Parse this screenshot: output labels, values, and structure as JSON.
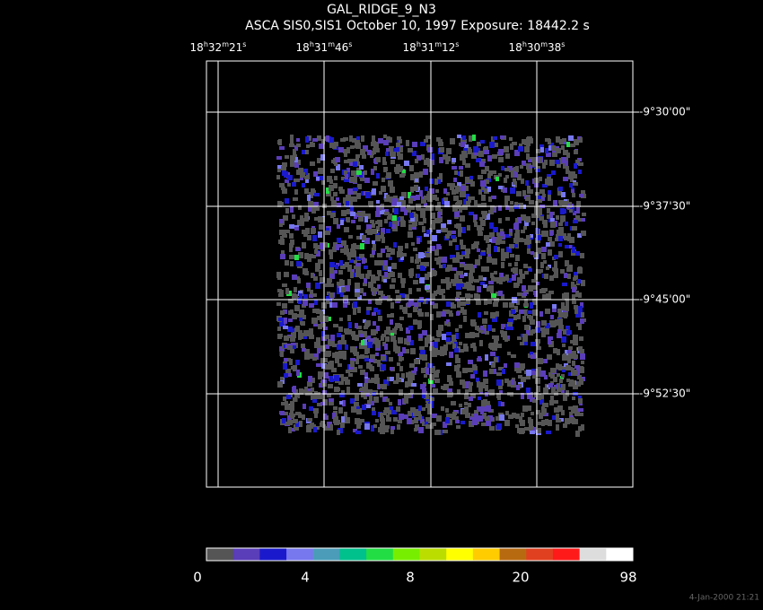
{
  "header": {
    "title": "GAL_RIDGE_9_N3",
    "subtitle": "ASCA SIS0,SIS1 October 10, 1997 Exposure: 18442.2 s"
  },
  "ra_labels": [
    [
      "18",
      "h",
      "32",
      "m",
      "21",
      "s"
    ],
    [
      "18",
      "h",
      "31",
      "m",
      "46",
      "s"
    ],
    [
      "18",
      "h",
      "31",
      "m",
      "12",
      "s"
    ],
    [
      "18",
      "h",
      "30",
      "m",
      "38",
      "s"
    ]
  ],
  "dec_labels": [
    "-9°30'00\"",
    "-9°37'30\"",
    "-9°45'00\"",
    "-9°52'30\""
  ],
  "colorbar": {
    "colors": [
      "#555555",
      "#5a3db8",
      "#1a1acc",
      "#7777ee",
      "#4a9cb8",
      "#00c08c",
      "#22dd44",
      "#77ee00",
      "#bbdd00",
      "#ffff00",
      "#ffcc00",
      "#b86a10",
      "#e04020",
      "#ff1a1a",
      "#dddddd",
      "#ffffff"
    ],
    "labels": [
      "0",
      "4",
      "8",
      "20",
      "98"
    ]
  },
  "timestamp": "4-Jan-2000 21:21"
}
